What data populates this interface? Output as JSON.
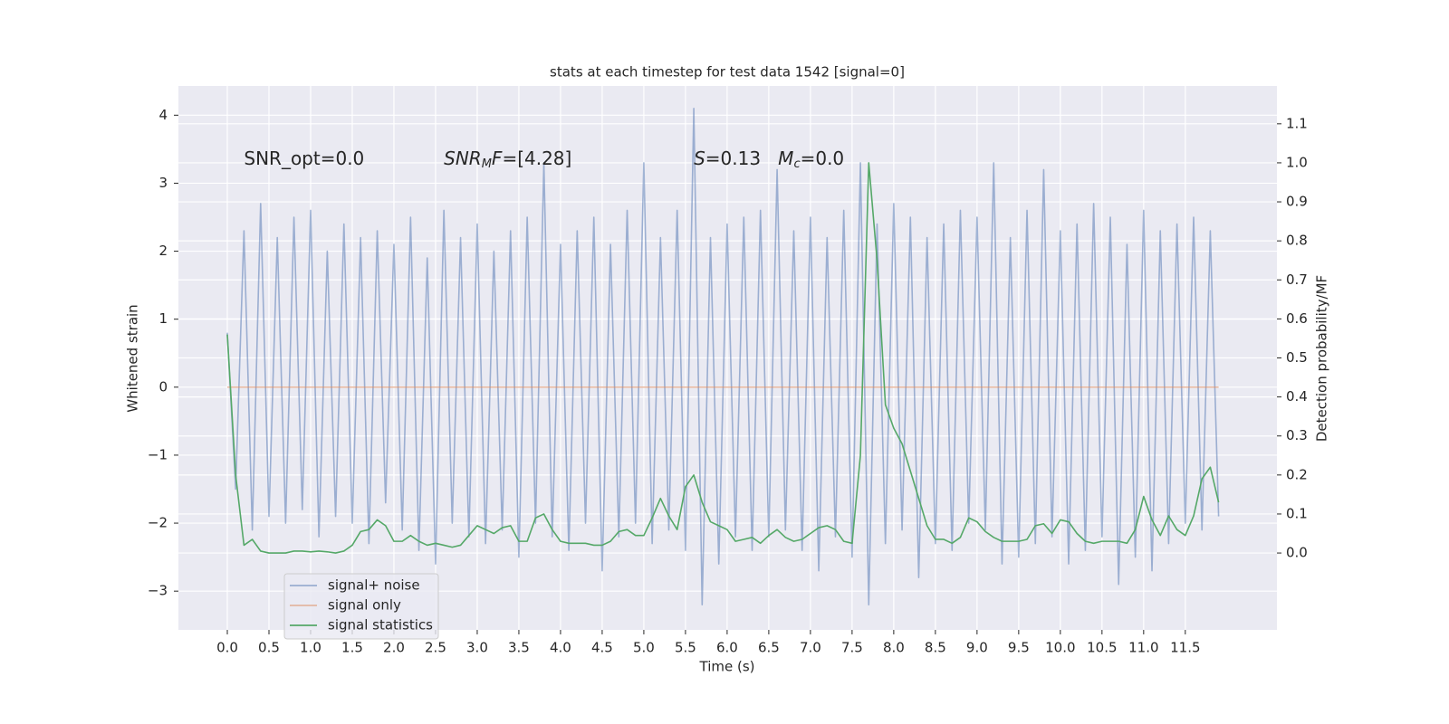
{
  "chart_data": {
    "type": "line",
    "title": "stats at each timestep for test data 1542 [signal=0]",
    "xlabel": "Time (s)",
    "ylabel": "Whitened strain",
    "y2label": "Detection probability/MF",
    "x": [
      0.0,
      0.1,
      0.2,
      0.3,
      0.4,
      0.5,
      0.6,
      0.7,
      0.8,
      0.9,
      1.0,
      1.1,
      1.2,
      1.3,
      1.4,
      1.5,
      1.6,
      1.7,
      1.8,
      1.9,
      2.0,
      2.1,
      2.2,
      2.3,
      2.4,
      2.5,
      2.6,
      2.7,
      2.8,
      2.9,
      3.0,
      3.1,
      3.2,
      3.3,
      3.4,
      3.5,
      3.6,
      3.7,
      3.8,
      3.9,
      4.0,
      4.1,
      4.2,
      4.3,
      4.4,
      4.5,
      4.6,
      4.7,
      4.8,
      4.9,
      5.0,
      5.1,
      5.2,
      5.3,
      5.4,
      5.5,
      5.6,
      5.7,
      5.8,
      5.9,
      6.0,
      6.1,
      6.2,
      6.3,
      6.4,
      6.5,
      6.6,
      6.7,
      6.8,
      6.9,
      7.0,
      7.1,
      7.2,
      7.3,
      7.4,
      7.5,
      7.6,
      7.7,
      7.8,
      7.9,
      8.0,
      8.1,
      8.2,
      8.3,
      8.4,
      8.5,
      8.6,
      8.7,
      8.8,
      8.9,
      9.0,
      9.1,
      9.2,
      9.3,
      9.4,
      9.5,
      9.6,
      9.7,
      9.8,
      9.9,
      10.0,
      10.1,
      10.2,
      10.3,
      10.4,
      10.5,
      10.6,
      10.7,
      10.8,
      10.9,
      11.0,
      11.1,
      11.2,
      11.3,
      11.4,
      11.5,
      11.6,
      11.7,
      11.8,
      11.9
    ],
    "series": [
      {
        "name": "signal+ noise",
        "color": "#4c72b0",
        "opacity": 0.5,
        "values": [
          0.8,
          -1.5,
          2.3,
          -2.1,
          2.7,
          -1.9,
          2.2,
          -2.0,
          2.5,
          -1.8,
          2.6,
          -2.2,
          2.0,
          -1.9,
          2.4,
          -2.0,
          2.2,
          -2.3,
          2.3,
          -1.7,
          2.1,
          -2.1,
          2.5,
          -2.4,
          1.9,
          -2.6,
          2.6,
          -2.0,
          2.2,
          -2.2,
          2.4,
          -2.3,
          2.0,
          -2.1,
          2.3,
          -2.5,
          2.5,
          -2.0,
          3.3,
          -2.2,
          2.1,
          -2.4,
          2.3,
          -2.0,
          2.5,
          -2.7,
          2.1,
          -2.2,
          2.6,
          -2.0,
          3.3,
          -2.3,
          2.2,
          -2.1,
          2.6,
          -2.4,
          4.1,
          -3.2,
          2.2,
          -2.6,
          2.4,
          -2.2,
          2.5,
          -2.4,
          2.6,
          -2.2,
          3.2,
          -2.1,
          2.3,
          -2.4,
          2.5,
          -2.7,
          2.2,
          -2.2,
          2.6,
          -2.5,
          3.3,
          -3.2,
          2.4,
          -2.3,
          2.7,
          -2.1,
          2.5,
          -2.8,
          2.2,
          -2.3,
          2.4,
          -2.4,
          2.6,
          -2.0,
          2.5,
          -2.1,
          3.3,
          -2.6,
          2.2,
          -2.5,
          2.6,
          -2.3,
          3.2,
          -2.2,
          2.3,
          -2.6,
          2.4,
          -2.4,
          2.7,
          -2.2,
          2.5,
          -2.9,
          2.1,
          -2.5,
          2.6,
          -2.7,
          2.3,
          -2.3,
          2.4,
          -2.0,
          2.5,
          -2.1,
          2.3,
          -1.9
        ]
      },
      {
        "name": "signal only",
        "color": "#dd8452",
        "opacity": 0.5,
        "values": [
          0,
          0,
          0,
          0,
          0,
          0,
          0,
          0,
          0,
          0,
          0,
          0,
          0,
          0,
          0,
          0,
          0,
          0,
          0,
          0,
          0,
          0,
          0,
          0,
          0,
          0,
          0,
          0,
          0,
          0,
          0,
          0,
          0,
          0,
          0,
          0,
          0,
          0,
          0,
          0,
          0,
          0,
          0,
          0,
          0,
          0,
          0,
          0,
          0,
          0,
          0,
          0,
          0,
          0,
          0,
          0,
          0,
          0,
          0,
          0,
          0,
          0,
          0,
          0,
          0,
          0,
          0,
          0,
          0,
          0,
          0,
          0,
          0,
          0,
          0,
          0,
          0,
          0,
          0,
          0,
          0,
          0,
          0,
          0,
          0,
          0,
          0,
          0,
          0,
          0,
          0,
          0,
          0,
          0,
          0,
          0,
          0,
          0,
          0,
          0,
          0,
          0,
          0,
          0,
          0,
          0,
          0,
          0,
          0,
          0,
          0,
          0,
          0,
          0,
          0,
          0,
          0,
          0,
          0,
          0
        ]
      },
      {
        "name": "signal statistics",
        "color": "#55a868",
        "opacity": 1,
        "axis": "y2",
        "values": [
          0.56,
          0.2,
          0.02,
          0.035,
          0.005,
          0.0,
          0.0,
          0.0,
          0.005,
          0.005,
          0.003,
          0.005,
          0.003,
          0.0,
          0.005,
          0.02,
          0.055,
          0.06,
          0.085,
          0.07,
          0.03,
          0.03,
          0.045,
          0.03,
          0.02,
          0.025,
          0.02,
          0.015,
          0.02,
          0.045,
          0.07,
          0.06,
          0.05,
          0.065,
          0.07,
          0.03,
          0.03,
          0.09,
          0.1,
          0.06,
          0.03,
          0.025,
          0.025,
          0.025,
          0.02,
          0.02,
          0.03,
          0.055,
          0.06,
          0.045,
          0.045,
          0.09,
          0.14,
          0.095,
          0.06,
          0.17,
          0.2,
          0.13,
          0.08,
          0.07,
          0.06,
          0.03,
          0.035,
          0.04,
          0.025,
          0.045,
          0.06,
          0.04,
          0.03,
          0.035,
          0.05,
          0.065,
          0.07,
          0.06,
          0.03,
          0.025,
          0.25,
          1.0,
          0.75,
          0.38,
          0.32,
          0.28,
          0.21,
          0.14,
          0.07,
          0.035,
          0.035,
          0.025,
          0.04,
          0.09,
          0.08,
          0.055,
          0.04,
          0.03,
          0.03,
          0.03,
          0.035,
          0.07,
          0.075,
          0.05,
          0.085,
          0.08,
          0.05,
          0.03,
          0.025,
          0.03,
          0.03,
          0.03,
          0.025,
          0.06,
          0.145,
          0.085,
          0.045,
          0.095,
          0.06,
          0.045,
          0.095,
          0.19,
          0.22,
          0.13
        ]
      }
    ],
    "xlim": [
      -0.587,
      12.6
    ],
    "ylim": [
      -3.57,
      4.43
    ],
    "y2lim": [
      -0.197,
      1.197
    ],
    "xticks": [
      {
        "value": 0,
        "label": "0.0"
      },
      0.5,
      {
        "value": 1,
        "label": "1.0"
      },
      1.5,
      {
        "value": 2,
        "label": "2.0"
      },
      2.5,
      {
        "value": 3,
        "label": "3.0"
      },
      3.5,
      {
        "value": 4,
        "label": "4.0"
      },
      4.5,
      {
        "value": 5,
        "label": "5.0"
      },
      5.5,
      {
        "value": 6,
        "label": "6.0"
      },
      6.5,
      {
        "value": 7,
        "label": "7.0"
      },
      7.5,
      {
        "value": 8,
        "label": "8.0"
      },
      8.5,
      {
        "value": 9,
        "label": "9.0"
      },
      9.5,
      {
        "value": 10,
        "label": "10.0"
      },
      10.5,
      {
        "value": 11,
        "label": "11.0"
      },
      11.5
    ],
    "yticks": [
      {
        "value": -3,
        "label": "−3"
      },
      {
        "value": -2,
        "label": "−2"
      },
      {
        "value": -1,
        "label": "−1"
      },
      0,
      1,
      2,
      3,
      4
    ],
    "y2ticks": [
      {
        "value": 0,
        "label": "0.0"
      },
      0.1,
      0.2,
      0.3,
      0.4,
      0.5,
      0.6,
      0.7,
      0.8,
      0.9,
      {
        "value": 1,
        "label": "1.0"
      },
      1.1
    ],
    "grid": true,
    "legend": "lower left",
    "annotations": [
      {
        "x": 0.2,
        "y": 3.35,
        "parts": [
          {
            "t": "SNR_opt=0.0"
          }
        ]
      },
      {
        "x": 2.6,
        "y": 3.35,
        "parts": [
          {
            "t": "SNR",
            "italic": true
          },
          {
            "t": "M",
            "italic": true,
            "sub": true
          },
          {
            "t": "F",
            "italic": true
          },
          {
            "t": "=[4.28]"
          }
        ]
      },
      {
        "x": 5.6,
        "y": 3.35,
        "parts": [
          {
            "t": "S",
            "italic": true
          },
          {
            "t": "=0.13   "
          },
          {
            "t": "M",
            "italic": true
          },
          {
            "t": "c",
            "italic": true,
            "sub": true
          },
          {
            "t": "=0.0"
          }
        ]
      }
    ]
  }
}
